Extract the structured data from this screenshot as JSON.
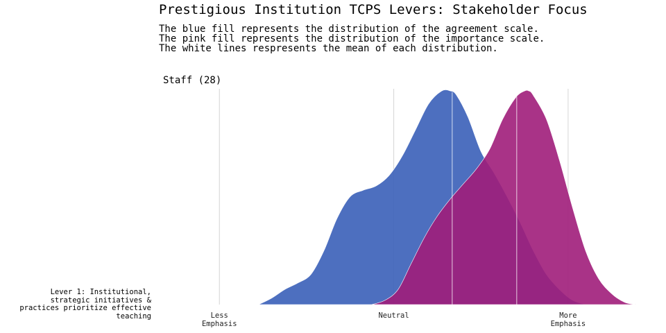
{
  "header": {
    "title": "Prestigious Institution TCPS Levers: Stakeholder Focus",
    "subtitle_lines": [
      "The blue fill represents the distribution of the agreement scale.",
      "The pink fill represents the distribution of the importance scale.",
      "The white lines respresents the mean of each distribution."
    ]
  },
  "chart_data": {
    "type": "area",
    "facet_label": "Staff (28)",
    "row_label_lines": [
      "Lever 1: Institutional,",
      "strategic initiatives &",
      "practices prioritize effective",
      "teaching"
    ],
    "x_ticks": [
      {
        "value": 1,
        "lines": [
          "Less",
          "Emphasis"
        ]
      },
      {
        "value": 3,
        "lines": [
          "Neutral"
        ]
      },
      {
        "value": 5,
        "lines": [
          "More",
          "Emphasis"
        ]
      }
    ],
    "xlim": [
      0.25,
      5.9
    ],
    "ylim": [
      0,
      1
    ],
    "grid": true,
    "series": [
      {
        "fill": "#3a5fb8",
        "mean": 3.67,
        "x": [
          1.45,
          1.6,
          1.75,
          1.9,
          2.05,
          2.2,
          2.35,
          2.5,
          2.65,
          2.8,
          2.95,
          3.1,
          3.25,
          3.4,
          3.55,
          3.65,
          3.72,
          3.85,
          4.0,
          4.15,
          4.3,
          4.45,
          4.6,
          4.75,
          4.9,
          5.05,
          5.2,
          5.22
        ],
        "y": [
          0.0,
          0.03,
          0.07,
          0.1,
          0.14,
          0.25,
          0.4,
          0.5,
          0.53,
          0.55,
          0.6,
          0.69,
          0.81,
          0.93,
          0.99,
          0.99,
          0.97,
          0.87,
          0.71,
          0.61,
          0.5,
          0.38,
          0.25,
          0.14,
          0.07,
          0.02,
          0.0,
          0.0
        ]
      },
      {
        "fill": "#a01d7a",
        "mean": 4.41,
        "x": [
          2.75,
          2.9,
          3.05,
          3.2,
          3.35,
          3.5,
          3.65,
          3.8,
          3.95,
          4.1,
          4.25,
          4.4,
          4.5,
          4.55,
          4.6,
          4.75,
          4.9,
          5.05,
          5.2,
          5.35,
          5.5,
          5.65,
          5.78
        ],
        "y": [
          0.0,
          0.02,
          0.07,
          0.19,
          0.31,
          0.41,
          0.49,
          0.56,
          0.63,
          0.72,
          0.86,
          0.96,
          0.99,
          0.99,
          0.97,
          0.86,
          0.67,
          0.45,
          0.25,
          0.12,
          0.05,
          0.01,
          0.0
        ]
      }
    ]
  }
}
